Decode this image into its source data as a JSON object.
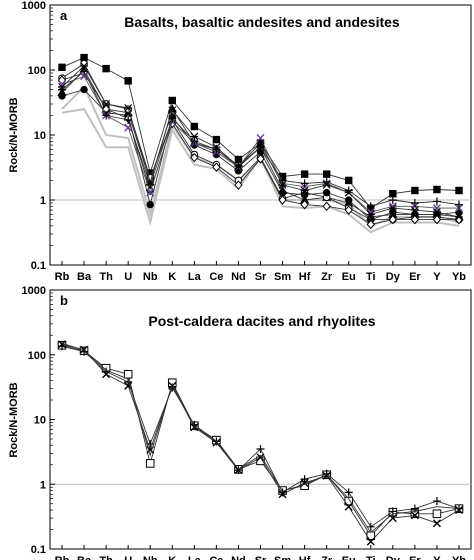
{
  "chart_data": [
    {
      "type": "line",
      "panel_label": "a",
      "title": "Basalts, basaltic andesites and andesites",
      "ylabel": "Rock/N-MORB",
      "xlabel": "",
      "y_scale": "log",
      "ylim": [
        0.1,
        1000
      ],
      "y_ticks": [
        "0.1",
        "1",
        "10",
        "100",
        "1000"
      ],
      "reference_line": 1,
      "legend": "none",
      "categories": [
        "Rb",
        "Ba",
        "Th",
        "U",
        "Nb",
        "K",
        "La",
        "Ce",
        "Nd",
        "Sr",
        "Sm",
        "Hf",
        "Zr",
        "Eu",
        "Ti",
        "Dy",
        "Er",
        "Y",
        "Yb"
      ],
      "series": [
        {
          "marker": "square-filled",
          "color": "#000000",
          "values": [
            110,
            155,
            105,
            68,
            2.6,
            34,
            13.5,
            8.5,
            4.2,
            7.5,
            2.3,
            2.5,
            2.5,
            2.0,
            0.75,
            1.25,
            1.4,
            1.45,
            1.4
          ]
        },
        {
          "marker": "triangle-filled",
          "color": "#000000",
          "values": [
            45,
            100,
            25,
            22,
            1.9,
            25,
            7.5,
            6.0,
            3.2,
            6.5,
            1.4,
            1.0,
            1.1,
            0.9,
            0.55,
            0.6,
            0.6,
            0.6,
            0.55
          ]
        },
        {
          "marker": "circle-open",
          "color": "#000000",
          "values": [
            75,
            125,
            30,
            25,
            2.2,
            17,
            5.0,
            3.5,
            2.0,
            4.5,
            1.05,
            1.3,
            1.1,
            0.75,
            0.5,
            0.5,
            0.55,
            0.55,
            0.5
          ]
        },
        {
          "marker": "circle-filled",
          "color": "#000000",
          "values": [
            40,
            50,
            22,
            20,
            0.85,
            19,
            7.0,
            5.0,
            2.8,
            5.5,
            1.3,
            1.2,
            1.3,
            1.0,
            0.5,
            0.65,
            0.6,
            0.6,
            0.65
          ]
        },
        {
          "marker": "diamond-open",
          "color": "#000000",
          "values": [
            70,
            90,
            25,
            18,
            1.4,
            15,
            4.5,
            3.2,
            1.7,
            4.3,
            1.0,
            0.85,
            0.8,
            0.7,
            0.42,
            0.5,
            0.5,
            0.5,
            0.5
          ]
        },
        {
          "marker": "cross",
          "color": "#6a3d9a",
          "values": [
            60,
            80,
            20,
            13,
            1.3,
            16,
            7.5,
            5.5,
            3.2,
            9.0,
            1.8,
            1.6,
            1.8,
            1.3,
            0.65,
            0.8,
            0.8,
            0.75,
            0.75
          ]
        },
        {
          "marker": "star",
          "color": "#000000",
          "values": [
            55,
            115,
            30,
            26,
            1.9,
            24,
            9.5,
            6.5,
            3.3,
            7.5,
            1.7,
            1.4,
            1.7,
            1.3,
            0.6,
            0.75,
            0.7,
            0.65,
            0.55
          ]
        },
        {
          "marker": "plus",
          "color": "#000000",
          "values": [
            50,
            95,
            20,
            17,
            1.7,
            18,
            8.0,
            6.0,
            3.4,
            6.5,
            2.0,
            1.8,
            1.9,
            1.4,
            0.8,
            1.0,
            0.9,
            0.95,
            0.85
          ]
        },
        {
          "marker": "none",
          "color": "#c0c0c0",
          "values": [
            22,
            25,
            6.5,
            6.5,
            0.45,
            12,
            3.5,
            3.0,
            1.5,
            4.5,
            0.8,
            0.75,
            0.8,
            0.6,
            0.32,
            0.45,
            0.45,
            0.45,
            0.4
          ]
        },
        {
          "marker": "none",
          "color": "#c0c0c0",
          "values": [
            25,
            55,
            10,
            9,
            0.6,
            14,
            4.5,
            3.5,
            2.0,
            4.2,
            1.0,
            1.0,
            1.0,
            0.85,
            0.4,
            0.55,
            0.55,
            0.55,
            0.45
          ]
        }
      ]
    },
    {
      "type": "line",
      "panel_label": "b",
      "title": "Post-caldera dacites and rhyolites",
      "ylabel": "Rock/N-MORB",
      "xlabel": "",
      "y_scale": "log",
      "ylim": [
        0.1,
        1000
      ],
      "y_ticks": [
        "0.1",
        "1",
        "10",
        "100",
        "1000"
      ],
      "reference_line": 1,
      "legend": "none",
      "categories": [
        "Rb",
        "Ba",
        "Th",
        "U",
        "Nb",
        "K",
        "La",
        "Ce",
        "Nd",
        "Sr",
        "Sm",
        "Hf",
        "Zr",
        "Eu",
        "Ti",
        "Dy",
        "Er",
        "Y",
        "Yb"
      ],
      "series": [
        {
          "marker": "square-open",
          "color": "#000000",
          "values": [
            140,
            115,
            62,
            50,
            2.1,
            37,
            8.0,
            4.8,
            1.7,
            2.3,
            0.8,
            0.95,
            1.4,
            0.55,
            0.16,
            0.37,
            0.35,
            0.35,
            0.42
          ]
        },
        {
          "marker": "plus",
          "color": "#000000",
          "values": [
            135,
            112,
            55,
            38,
            4.2,
            31,
            8.3,
            4.6,
            1.65,
            3.5,
            0.75,
            1.2,
            1.45,
            0.75,
            0.22,
            0.38,
            0.42,
            0.55,
            0.42
          ]
        },
        {
          "marker": "cross",
          "color": "#000000",
          "values": [
            145,
            120,
            50,
            33,
            3.4,
            33,
            7.6,
            4.4,
            1.65,
            2.6,
            0.7,
            1.05,
            1.35,
            0.45,
            0.13,
            0.3,
            0.33,
            0.25,
            0.4
          ]
        },
        {
          "marker": "none",
          "color": "#000000",
          "values": [
            150,
            118,
            58,
            42,
            2.8,
            35,
            7.8,
            4.6,
            1.7,
            2.8,
            0.78,
            1.0,
            1.4,
            0.6,
            0.18,
            0.35,
            0.38,
            0.45,
            0.42
          ]
        }
      ]
    }
  ]
}
